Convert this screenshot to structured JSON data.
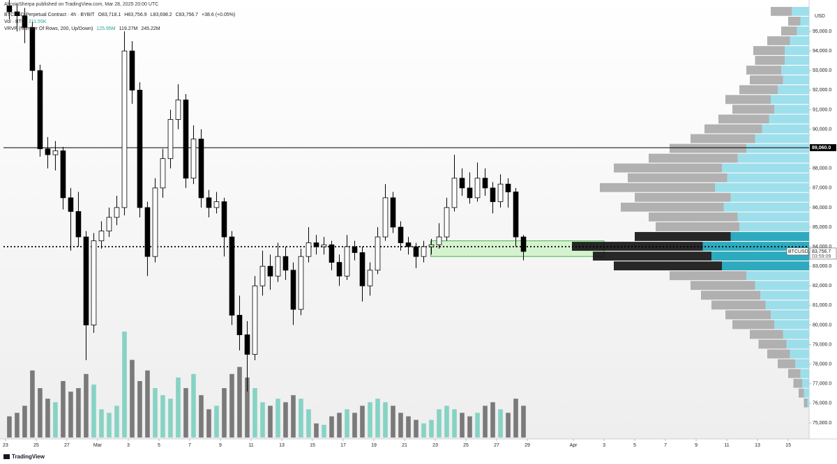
{
  "chart_data": {
    "type": "candlestick",
    "title": "AltcoinSherpa published on TradingView.com, Mar 28, 2025 20:00 UTC",
    "symbol_legend": [
      "BTCUSD Perpetual Contract · 4h · BYBIT",
      "O83,718.1",
      "H83,756.9",
      "L83,698.2",
      "C83,756.7",
      "+38.6 (+0.05%)"
    ],
    "volume_legend": [
      "Vol · BTC",
      "211.55K"
    ],
    "vrvp_legend": [
      "VRVP (Number Of Rows, 200, Up/Down)",
      "125.95M",
      "119.27M",
      "245.22M"
    ],
    "currency": "USD",
    "brand": "TradingView",
    "x": [
      0.25,
      0.75,
      1.25,
      1.75,
      2.25,
      2.75,
      3.25,
      3.75,
      4.25,
      4.75,
      5.25,
      5.75,
      6.25,
      6.75,
      7.25,
      7.75,
      8.25,
      8.75,
      9.25,
      9.75,
      10.25,
      10.75,
      11.25,
      11.75,
      12.25,
      12.75,
      13.25,
      13.75,
      14.25,
      14.75,
      15.25,
      15.75,
      16.25,
      16.75,
      17.25,
      17.75,
      18.25,
      18.75,
      19.25,
      19.75,
      20.25,
      20.75,
      21.25,
      21.75,
      22.25,
      22.75,
      23.25,
      23.75,
      24.25,
      24.75,
      25.25,
      25.75,
      26.25,
      26.75,
      27.25,
      27.75,
      28.25,
      28.75,
      29.25,
      29.75,
      30.25,
      30.75,
      31.25,
      31.75,
      32.25,
      32.75,
      33.25,
      33.75
    ],
    "open": [
      96300,
      96000,
      95800,
      95200,
      93000,
      89000,
      88700,
      88900,
      86500,
      85800,
      84500,
      80000,
      84300,
      84800,
      85500,
      86000,
      94000,
      92000,
      86000,
      83500,
      87000,
      88500,
      90500,
      91500,
      87500,
      89500,
      86500,
      86000,
      86300,
      84500,
      80500,
      79500,
      78500,
      82000,
      83000,
      82500,
      83500,
      82800,
      80800,
      83500,
      84200,
      84000,
      84100,
      83200,
      82500,
      84000,
      83700,
      82000,
      82800,
      84500,
      86500,
      85000,
      84200,
      84000,
      83500,
      84000,
      84100,
      84500,
      86000,
      87500,
      87000,
      86500,
      87500,
      87000,
      86300,
      87200,
      86800,
      84500
    ],
    "high": [
      96800,
      96400,
      96200,
      95500,
      93300,
      89600,
      89400,
      89100,
      87000,
      86800,
      84800,
      84700,
      85300,
      86000,
      86600,
      95000,
      94500,
      92400,
      86300,
      87500,
      89000,
      91000,
      92300,
      91800,
      90200,
      90000,
      86900,
      86800,
      86500,
      84800,
      81500,
      80200,
      82500,
      83800,
      83600,
      84200,
      84000,
      83200,
      83900,
      85000,
      84600,
      84500,
      84300,
      83600,
      84600,
      84300,
      84000,
      83200,
      85000,
      87200,
      86800,
      85300,
      84500,
      84200,
      84300,
      84400,
      85200,
      86500,
      88700,
      88000,
      87800,
      88300,
      88000,
      87300,
      87700,
      87500,
      87000,
      84600
    ],
    "low": [
      95600,
      95000,
      94400,
      92500,
      88600,
      88000,
      87900,
      85900,
      83800,
      84000,
      78200,
      79600,
      83900,
      84500,
      85100,
      85600,
      91300,
      85500,
      82500,
      83200,
      86500,
      88000,
      90000,
      87000,
      87200,
      86000,
      85500,
      85700,
      83500,
      80000,
      78700,
      76600,
      78200,
      81500,
      81800,
      82200,
      82300,
      80000,
      80500,
      83200,
      83600,
      83600,
      82800,
      82000,
      82300,
      83300,
      81200,
      81500,
      82600,
      84300,
      84700,
      83800,
      83600,
      82900,
      83200,
      83600,
      83900,
      84300,
      85800,
      86600,
      86200,
      86300,
      86600,
      85700,
      86000,
      86000,
      84000,
      83300
    ],
    "close": [
      96000,
      95800,
      95200,
      93000,
      89000,
      88700,
      88900,
      86500,
      85800,
      84500,
      80000,
      84300,
      84800,
      85500,
      86000,
      94000,
      92000,
      86000,
      83500,
      87000,
      88500,
      90500,
      91500,
      87500,
      89500,
      86500,
      86000,
      86300,
      84500,
      80500,
      79500,
      78500,
      82000,
      83000,
      82500,
      83500,
      82800,
      80800,
      83500,
      84200,
      84000,
      84100,
      83200,
      82500,
      84000,
      83700,
      82000,
      82800,
      84500,
      86500,
      85000,
      84200,
      84000,
      83500,
      84000,
      84100,
      84500,
      86000,
      87500,
      87000,
      86500,
      87500,
      87000,
      86300,
      87200,
      86800,
      84500,
      83756.7
    ],
    "volume": [
      30,
      35,
      45,
      95,
      70,
      55,
      50,
      80,
      65,
      70,
      90,
      75,
      40,
      35,
      45,
      150,
      110,
      80,
      95,
      70,
      60,
      55,
      85,
      70,
      90,
      60,
      40,
      45,
      70,
      90,
      100,
      85,
      70,
      50,
      45,
      55,
      50,
      60,
      55,
      40,
      20,
      18,
      30,
      35,
      40,
      35,
      45,
      50,
      55,
      50,
      45,
      35,
      30,
      25,
      20,
      25,
      40,
      45,
      40,
      35,
      30,
      35,
      45,
      50,
      40,
      35,
      55,
      45
    ],
    "candle_up_color": "#ffffff",
    "candle_down_color": "#000000",
    "candle_border_color": "#000000",
    "volume_up_color": "#86d3c4",
    "volume_down_color": "#7a7a7a",
    "xlim": [
      -0.36,
      52.36
    ],
    "ylim": [
      74180,
      96070
    ],
    "xticks": [
      {
        "value": 0,
        "label": "23"
      },
      {
        "value": 2,
        "label": "25"
      },
      {
        "value": 4,
        "label": "27"
      },
      {
        "value": 6,
        "label": "Mar"
      },
      {
        "value": 8,
        "label": "3"
      },
      {
        "value": 10,
        "label": "5"
      },
      {
        "value": 12,
        "label": "7"
      },
      {
        "value": 14,
        "label": "9"
      },
      {
        "value": 16,
        "label": "11"
      },
      {
        "value": 18,
        "label": "13"
      },
      {
        "value": 20,
        "label": "15"
      },
      {
        "value": 22,
        "label": "17"
      },
      {
        "value": 24,
        "label": "19"
      },
      {
        "value": 26,
        "label": "21"
      },
      {
        "value": 28,
        "label": "23"
      },
      {
        "value": 30,
        "label": "25"
      },
      {
        "value": 32,
        "label": "27"
      },
      {
        "value": 34,
        "label": "29"
      },
      {
        "value": 37,
        "label": "Apr"
      },
      {
        "value": 39,
        "label": "3"
      },
      {
        "value": 41,
        "label": "5"
      },
      {
        "value": 43,
        "label": "7"
      },
      {
        "value": 45,
        "label": "9"
      },
      {
        "value": 47,
        "label": "11"
      },
      {
        "value": 49,
        "label": "13"
      },
      {
        "value": 51,
        "label": "15"
      }
    ],
    "yticks": [
      {
        "value": 95000,
        "label": "95,000.0"
      },
      {
        "value": 94000,
        "label": "94,000.0"
      },
      {
        "value": 93000,
        "label": "93,000.0"
      },
      {
        "value": 92000,
        "label": "92,000.0"
      },
      {
        "value": 91000,
        "label": "91,000.0"
      },
      {
        "value": 90000,
        "label": "90,000.0"
      },
      {
        "value": 88000,
        "label": "88,000.0"
      },
      {
        "value": 87000,
        "label": "87,000.0"
      },
      {
        "value": 86000,
        "label": "86,000.0"
      },
      {
        "value": 85000,
        "label": "85,000.0"
      },
      {
        "value": 84000,
        "label": "84,000.0"
      },
      {
        "value": 83000,
        "label": "83,000.0"
      },
      {
        "value": 82000,
        "label": "82,000.0"
      },
      {
        "value": 81000,
        "label": "81,000.0"
      },
      {
        "value": 80000,
        "label": "80,000.0"
      },
      {
        "value": 79000,
        "label": "79,000.0"
      },
      {
        "value": 78000,
        "label": "78,000.0"
      },
      {
        "value": 77000,
        "label": "77,000.0"
      },
      {
        "value": 76000,
        "label": "76,000.0"
      },
      {
        "value": 75000,
        "label": "75,000.0"
      }
    ],
    "grid": false,
    "levels": [
      {
        "value": 89060,
        "label": "89,060.0",
        "style": "solid"
      },
      {
        "value": 84000,
        "style": "dotted"
      }
    ],
    "zones": [
      {
        "x": [
          27.7,
          39.0
        ],
        "y": [
          83500,
          84300
        ],
        "color": "#d5f2cf",
        "border": "#4caf50"
      }
    ],
    "price_tag": {
      "symbol": "BTCUSD.P",
      "label": "83,756.7",
      "countdown": "03:59:09"
    },
    "profile": {
      "prices": [
        76000,
        76500,
        77000,
        77500,
        78000,
        78500,
        79000,
        79500,
        80000,
        80500,
        81000,
        81500,
        82000,
        82500,
        83000,
        83500,
        84000,
        84500,
        85000,
        85500,
        86000,
        86500,
        87000,
        87500,
        88000,
        88500,
        89000,
        89500,
        90000,
        90500,
        91000,
        91500,
        92000,
        92500,
        93000,
        93500,
        94000,
        94500,
        95000,
        95500,
        96000
      ],
      "up": [
        0.1,
        0.3,
        0.4,
        0.5,
        0.8,
        1.1,
        1.3,
        1.5,
        2.0,
        2.2,
        2.5,
        2.8,
        3.1,
        3.6,
        5.0,
        5.6,
        6.1,
        4.5,
        4.0,
        4.1,
        4.9,
        4.5,
        5.4,
        4.7,
        5.0,
        4.1,
        3.6,
        3.1,
        2.7,
        2.3,
        2.0,
        2.2,
        1.8,
        1.5,
        1.6,
        1.4,
        1.4,
        1.1,
        0.7,
        0.5,
        1.0
      ],
      "down": [
        0.2,
        0.3,
        0.5,
        0.7,
        1.0,
        1.3,
        1.6,
        1.9,
        2.4,
        2.6,
        3.1,
        3.4,
        3.7,
        4.4,
        6.2,
        6.8,
        7.5,
        5.5,
        4.8,
        5.1,
        5.9,
        5.5,
        6.6,
        5.7,
        6.2,
        5.1,
        4.4,
        3.7,
        3.3,
        2.9,
        2.4,
        2.6,
        2.2,
        1.9,
        2.0,
        1.7,
        1.8,
        1.3,
        0.9,
        0.7,
        1.2
      ],
      "up_color": "#93dbea",
      "down_color": "#a8a8a8",
      "value_area": [
        82750,
        84750
      ],
      "va_up_color": "#17a2b8",
      "va_down_color": "#111111"
    }
  }
}
